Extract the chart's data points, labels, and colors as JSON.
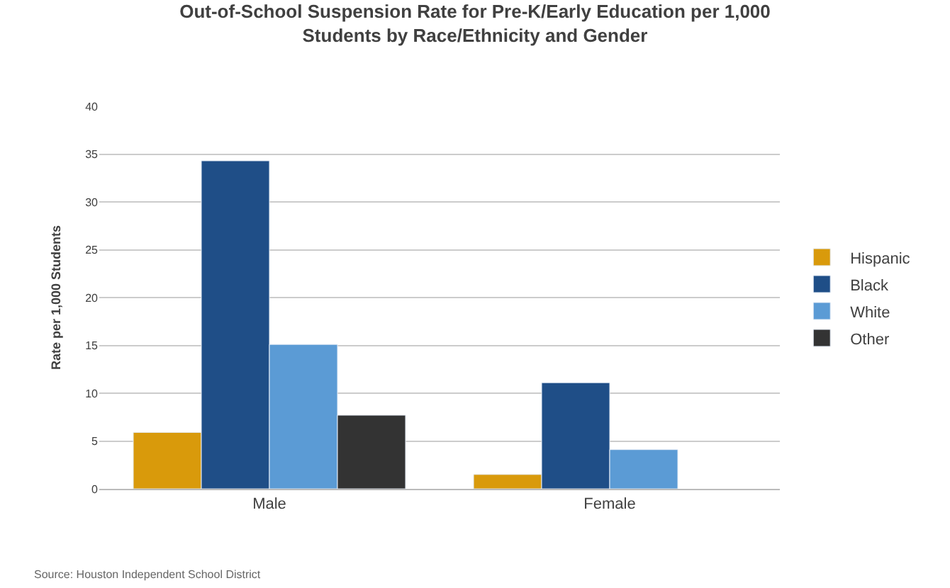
{
  "chart_data": {
    "type": "bar",
    "title": "Out-of-School Suspension Rate for Pre-K/Early Education per 1,000 Students by Race/Ethnicity and Gender",
    "ylabel": "Rate per 1,000 Students",
    "categories": [
      "Male",
      "Female"
    ],
    "series": [
      {
        "name": "Hispanic",
        "color": "#d99a0b",
        "values": [
          5.9,
          1.5
        ]
      },
      {
        "name": "Black",
        "color": "#1f4e87",
        "values": [
          34.3,
          11.1
        ]
      },
      {
        "name": "White",
        "color": "#5b9bd5",
        "values": [
          15.1,
          4.1
        ]
      },
      {
        "name": "Other",
        "color": "#333333",
        "values": [
          7.7,
          null
        ]
      }
    ],
    "ylim": [
      0,
      40
    ],
    "yticks": [
      0,
      5,
      10,
      15,
      20,
      25,
      30,
      35,
      40
    ],
    "grid": "y",
    "legend": "right",
    "annotations": [
      "Source: Houston Independent School District"
    ]
  }
}
